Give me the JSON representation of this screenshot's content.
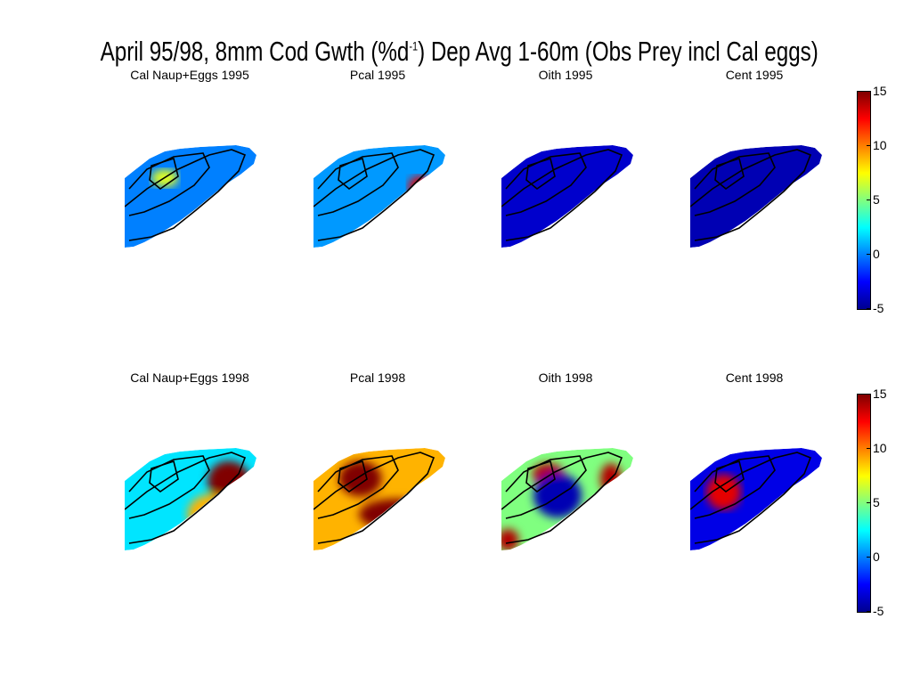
{
  "title": {
    "main": "April 95/98, 8mm Cod Gwth (%d",
    "sup": "-1",
    "rest": ") Dep Avg 1-60m (Obs Prey incl Cal eggs)"
  },
  "chart_data": [
    {
      "type": "heatmap",
      "row": "1995",
      "colorbar": {
        "ticks": [
          "15",
          "10",
          "5",
          "0",
          "-5"
        ],
        "range": [
          -5,
          15
        ],
        "colormap": "jet"
      },
      "panels": [
        {
          "title": "Cal Naup+Eggs 1995",
          "base": 0,
          "hotspots": [
            {
              "cx": 0.3,
              "cy": 0.32,
              "rx": 0.1,
              "ry": 0.08,
              "value": 7
            }
          ]
        },
        {
          "title": "Pcal 1995",
          "base": 0.5,
          "hotspots": [
            {
              "cx": 0.8,
              "cy": 0.4,
              "rx": 0.09,
              "ry": 0.1,
              "value": 13
            }
          ]
        },
        {
          "title": "Oith 1995",
          "base": -3.5,
          "hotspots": []
        },
        {
          "title": "Cent 1995",
          "base": -4,
          "hotspots": []
        }
      ]
    },
    {
      "type": "heatmap",
      "row": "1998",
      "colorbar": {
        "ticks": [
          "15",
          "10",
          "5",
          "0",
          "-5"
        ],
        "range": [
          -5,
          15
        ],
        "colormap": "jet"
      },
      "panels": [
        {
          "title": "Cal Naup+Eggs 1998",
          "base": 2,
          "hotspots": [
            {
              "cx": 0.78,
              "cy": 0.32,
              "rx": 0.16,
              "ry": 0.18,
              "value": 15
            },
            {
              "cx": 0.65,
              "cy": 0.62,
              "rx": 0.18,
              "ry": 0.18,
              "value": 9
            }
          ]
        },
        {
          "title": "Pcal 1998",
          "base": 9,
          "hotspots": [
            {
              "cx": 0.35,
              "cy": 0.3,
              "rx": 0.16,
              "ry": 0.16,
              "value": 15
            },
            {
              "cx": 0.62,
              "cy": 0.62,
              "rx": 0.28,
              "ry": 0.14,
              "value": 15
            }
          ]
        },
        {
          "title": "Oith 1998",
          "base": 5,
          "hotspots": [
            {
              "cx": 0.35,
              "cy": 0.26,
              "rx": 0.12,
              "ry": 0.1,
              "value": 14
            },
            {
              "cx": 0.82,
              "cy": 0.3,
              "rx": 0.08,
              "ry": 0.14,
              "value": 14
            },
            {
              "cx": 0.05,
              "cy": 0.85,
              "rx": 0.08,
              "ry": 0.1,
              "value": 14
            },
            {
              "cx": 0.42,
              "cy": 0.45,
              "rx": 0.18,
              "ry": 0.2,
              "value": -4
            }
          ]
        },
        {
          "title": "Cent 1998",
          "base": -3,
          "hotspots": [
            {
              "cx": 0.25,
              "cy": 0.42,
              "rx": 0.13,
              "ry": 0.16,
              "value": 13
            }
          ]
        }
      ]
    }
  ]
}
